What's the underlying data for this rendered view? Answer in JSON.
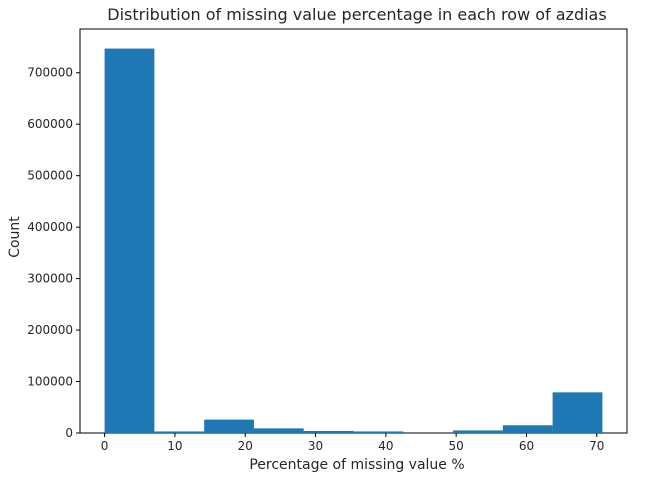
{
  "chart_data": {
    "type": "bar",
    "title": "Distribution of missing value percentage in each row of azdias",
    "xlabel": "Percentage of missing value %",
    "ylabel": "Count",
    "xlim": [
      -3.5,
      74.3
    ],
    "ylim": [
      0,
      785000
    ],
    "x_ticks": [
      0,
      10,
      20,
      30,
      40,
      50,
      60,
      70
    ],
    "y_ticks": [
      0,
      100000,
      200000,
      300000,
      400000,
      500000,
      600000,
      700000
    ],
    "bin_edges": [
      0,
      7.08,
      14.16,
      21.24,
      28.32,
      35.4,
      42.48,
      49.56,
      56.64,
      63.72,
      70.8
    ],
    "values": [
      747000,
      3000,
      26000,
      9000,
      4000,
      3000,
      0,
      5000,
      15000,
      79000
    ],
    "grid": false,
    "bar_color": "#1f77b4"
  }
}
